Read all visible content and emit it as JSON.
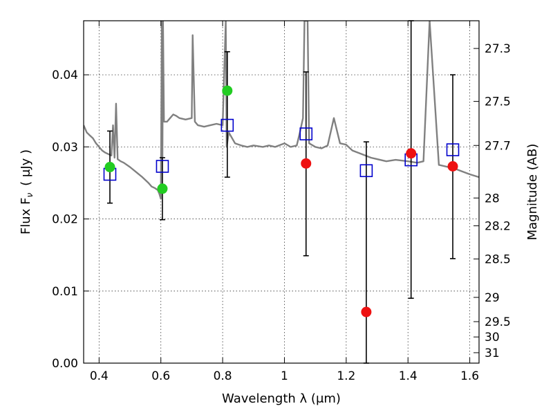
{
  "chart_data": {
    "type": "scatter",
    "xlabel": "Wavelength  λ (μm)",
    "ylabel": "Flux  F",
    "ylabel_sub": "ν",
    "ylabel_unit": "( μJy )",
    "ylabel_right": "Magnitude (AB)",
    "xlim": [
      0.35,
      1.63
    ],
    "ylim": [
      0.0,
      0.0475
    ],
    "x_ticks": [
      0.4,
      0.6,
      0.8,
      1.0,
      1.2,
      1.4,
      1.6
    ],
    "x_tick_labels": [
      "0.4",
      "0.6",
      "0.8",
      "1",
      "1.2",
      "1.4",
      "1.6"
    ],
    "y_ticks": [
      0.0,
      0.01,
      0.02,
      0.03,
      0.04
    ],
    "y_tick_labels": [
      "0.00",
      "0.01",
      "0.02",
      "0.03",
      "0.04"
    ],
    "right_ticks": [
      {
        "label": "27.3",
        "value": 27.3
      },
      {
        "label": "27.5",
        "value": 27.5
      },
      {
        "label": "27.7",
        "value": 27.7
      },
      {
        "label": "28",
        "value": 28.0
      },
      {
        "label": "28.2",
        "value": 28.2
      },
      {
        "label": "28.5",
        "value": 28.5
      },
      {
        "label": "29",
        "value": 29.0
      },
      {
        "label": "29.5",
        "value": 29.5
      },
      {
        "label": "30",
        "value": 30.0
      },
      {
        "label": "31",
        "value": 31.0
      }
    ],
    "grid": true,
    "colors": {
      "spectrum": "#808080",
      "green": "#22cc22",
      "red": "#ee1111",
      "box": "#0000cc",
      "errorbar": "#000000"
    },
    "spectrum": {
      "name": "model spectrum",
      "x": [
        0.35,
        0.36,
        0.37,
        0.38,
        0.39,
        0.4,
        0.41,
        0.42,
        0.43,
        0.44,
        0.445,
        0.45,
        0.455,
        0.46,
        0.47,
        0.48,
        0.5,
        0.52,
        0.54,
        0.56,
        0.57,
        0.58,
        0.59,
        0.595,
        0.6,
        0.603,
        0.605,
        0.607,
        0.61,
        0.62,
        0.63,
        0.64,
        0.65,
        0.66,
        0.68,
        0.7,
        0.703,
        0.71,
        0.72,
        0.74,
        0.76,
        0.78,
        0.8,
        0.81,
        0.813,
        0.82,
        0.84,
        0.86,
        0.88,
        0.9,
        0.93,
        0.95,
        0.97,
        1.0,
        1.02,
        1.04,
        1.05,
        1.06,
        1.065,
        1.07,
        1.075,
        1.08,
        1.1,
        1.12,
        1.14,
        1.16,
        1.18,
        1.2,
        1.22,
        1.25,
        1.28,
        1.3,
        1.33,
        1.36,
        1.4,
        1.43,
        1.45,
        1.47,
        1.5,
        1.55,
        1.6,
        1.63
      ],
      "y": [
        0.033,
        0.032,
        0.0316,
        0.0312,
        0.0305,
        0.03,
        0.0295,
        0.0292,
        0.029,
        0.0288,
        0.033,
        0.0285,
        0.036,
        0.0283,
        0.028,
        0.0278,
        0.0272,
        0.0265,
        0.0258,
        0.025,
        0.0245,
        0.0243,
        0.024,
        0.0235,
        0.0228,
        0.0475,
        0.0285,
        0.0475,
        0.0335,
        0.0335,
        0.034,
        0.0345,
        0.0343,
        0.034,
        0.0338,
        0.034,
        0.0455,
        0.0335,
        0.033,
        0.0328,
        0.033,
        0.0332,
        0.033,
        0.0475,
        0.03,
        0.032,
        0.0305,
        0.0302,
        0.03,
        0.0302,
        0.03,
        0.0302,
        0.03,
        0.0305,
        0.03,
        0.0302,
        0.032,
        0.034,
        0.0475,
        0.0475,
        0.0475,
        0.0305,
        0.03,
        0.0298,
        0.0302,
        0.034,
        0.0305,
        0.0303,
        0.0295,
        0.029,
        0.0285,
        0.0283,
        0.028,
        0.0282,
        0.028,
        0.0278,
        0.028,
        0.0475,
        0.0275,
        0.027,
        0.0262,
        0.0258
      ]
    },
    "green_points": [
      {
        "x": 0.435,
        "y": 0.0272
      },
      {
        "x": 0.605,
        "y": 0.0242
      },
      {
        "x": 0.815,
        "y": 0.0378
      }
    ],
    "red_points": [
      {
        "x": 1.07,
        "y": 0.0277
      },
      {
        "x": 1.265,
        "y": 0.0071
      },
      {
        "x": 1.41,
        "y": 0.0291
      },
      {
        "x": 1.545,
        "y": 0.0273
      }
    ],
    "model_boxes": [
      {
        "x": 0.435,
        "y": 0.0262
      },
      {
        "x": 0.605,
        "y": 0.0273
      },
      {
        "x": 0.815,
        "y": 0.033
      },
      {
        "x": 1.07,
        "y": 0.0318
      },
      {
        "x": 1.265,
        "y": 0.0267
      },
      {
        "x": 1.41,
        "y": 0.0282
      },
      {
        "x": 1.545,
        "y": 0.0296
      }
    ],
    "error_bars": [
      {
        "x": 0.435,
        "low": 0.0222,
        "high": 0.0322
      },
      {
        "x": 0.605,
        "low": 0.0199,
        "high": 0.0285
      },
      {
        "x": 0.815,
        "low": 0.0258,
        "high": 0.0432
      },
      {
        "x": 1.07,
        "low": 0.0149,
        "high": 0.0404
      },
      {
        "x": 1.265,
        "low": 0.0,
        "high": 0.0307
      },
      {
        "x": 1.41,
        "low": 0.009,
        "high": 0.0475
      },
      {
        "x": 1.545,
        "low": 0.0145,
        "high": 0.04
      }
    ]
  }
}
